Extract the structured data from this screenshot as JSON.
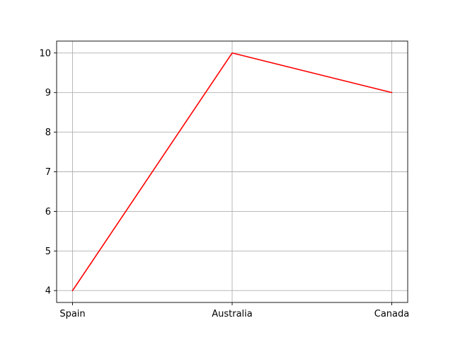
{
  "chart_data": {
    "type": "line",
    "title": "",
    "xlabel": "",
    "ylabel": "",
    "categories": [
      "Spain",
      "Australia",
      "Canada"
    ],
    "series": [
      {
        "values": [
          4,
          10,
          9
        ],
        "color": "#ff0000"
      }
    ],
    "ylim": [
      3.7,
      10.3
    ],
    "yticks": [
      4,
      5,
      6,
      7,
      8,
      9,
      10
    ],
    "grid": true,
    "legend": "none"
  }
}
